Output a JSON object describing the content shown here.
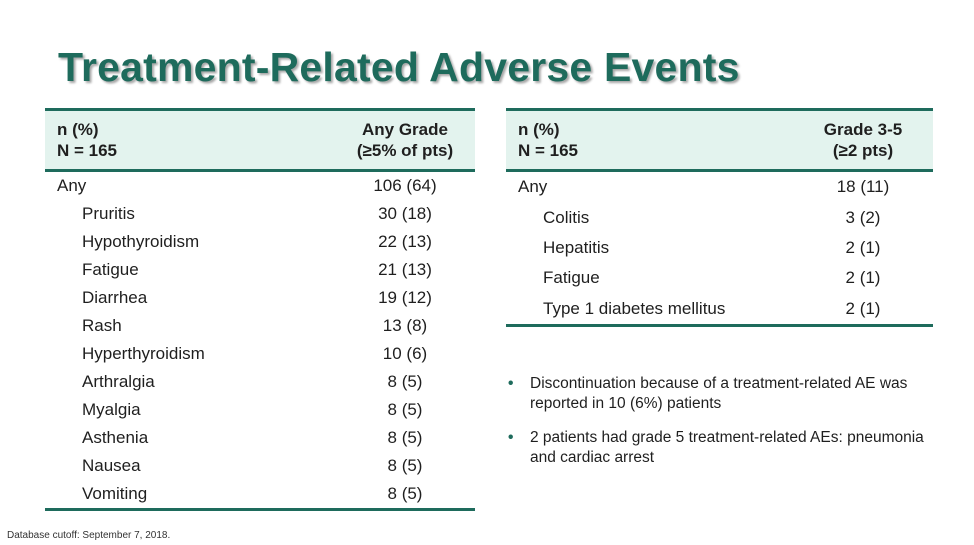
{
  "title": "Treatment-Related Adverse Events",
  "left_table": {
    "header_left_line1": "n (%)",
    "header_left_line2": "N = 165",
    "header_right_line1": "Any Grade",
    "header_right_line2": "(≥5% of pts)",
    "rows": [
      {
        "label": "Any",
        "value": "106 (64)"
      },
      {
        "label": "Pruritis",
        "value": "30 (18)"
      },
      {
        "label": "Hypothyroidism",
        "value": "22 (13)"
      },
      {
        "label": "Fatigue",
        "value": "21 (13)"
      },
      {
        "label": "Diarrhea",
        "value": "19 (12)"
      },
      {
        "label": "Rash",
        "value": "13 (8)"
      },
      {
        "label": "Hyperthyroidism",
        "value": "10 (6)"
      },
      {
        "label": "Arthralgia",
        "value": "8 (5)"
      },
      {
        "label": "Myalgia",
        "value": "8 (5)"
      },
      {
        "label": "Asthenia",
        "value": "8 (5)"
      },
      {
        "label": "Nausea",
        "value": "8 (5)"
      },
      {
        "label": "Vomiting",
        "value": "8 (5)"
      }
    ]
  },
  "right_table": {
    "header_left_line1": "n (%)",
    "header_left_line2": "N = 165",
    "header_right_line1": "Grade 3-5",
    "header_right_line2": "(≥2 pts)",
    "rows": [
      {
        "label": "Any",
        "value": "18 (11)"
      },
      {
        "label": "Colitis",
        "value": "3 (2)"
      },
      {
        "label": "Hepatitis",
        "value": "2 (1)"
      },
      {
        "label": "Fatigue",
        "value": "2 (1)"
      },
      {
        "label": "Type 1 diabetes mellitus",
        "value": "2 (1)"
      }
    ]
  },
  "bullets": [
    "Discontinuation because of a treatment-related AE was reported in 10 (6%) patients",
    "2 patients had grade 5 treatment-related AEs: pneumonia and cardiac arrest"
  ],
  "bullet_symbol": "•",
  "footnote": "Database cutoff: September 7, 2018.",
  "colors": {
    "accent": "#1e6b5c",
    "header_fill": "#e3f3ee"
  }
}
